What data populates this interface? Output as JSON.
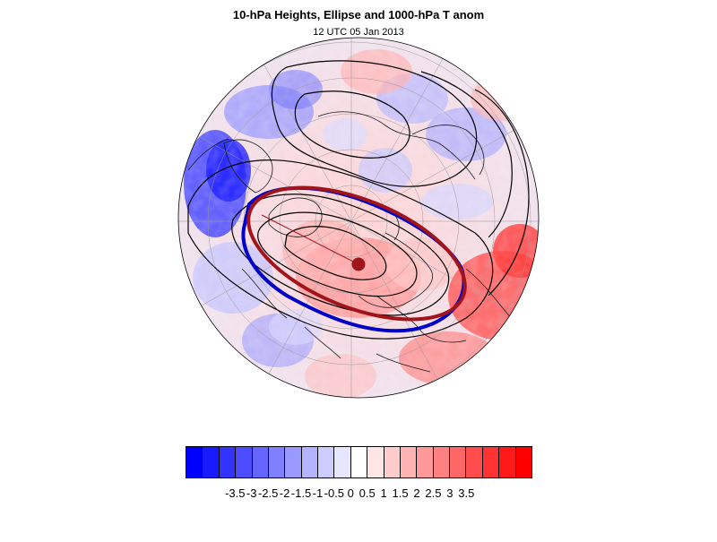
{
  "title": "10-hPa Heights, Ellipse and 1000-hPa T anom",
  "subtitle": "12 UTC 05 Jan 2013",
  "map": {
    "projection": "polar stereographic (north pole)",
    "fields": [
      "10-hPa geopotential height contours",
      "vortex ellipse",
      "1000-hPa temperature anomaly"
    ],
    "ellipse_color": "#a0151b",
    "vortex_contour_color": "#0000c8",
    "centroid_color": "#a0151b"
  },
  "colorbar": {
    "labels": [
      "-3.5",
      "-3",
      "-2.5",
      "-2",
      "-1.5",
      "-1",
      "-0.5",
      "0",
      "0.5",
      "1",
      "1.5",
      "2",
      "2.5",
      "3",
      "3.5"
    ],
    "colors": [
      "#0000ff",
      "#1a1aff",
      "#3333ff",
      "#4d4dff",
      "#6666ff",
      "#8080ff",
      "#9999ff",
      "#b3b3ff",
      "#ccccff",
      "#e6e6ff",
      "#ffffff",
      "#ffe6e6",
      "#ffcccc",
      "#ffb3b3",
      "#ff9999",
      "#ff8080",
      "#ff6666",
      "#ff4d4d",
      "#ff3333",
      "#ff1a1a",
      "#ff0000"
    ]
  }
}
